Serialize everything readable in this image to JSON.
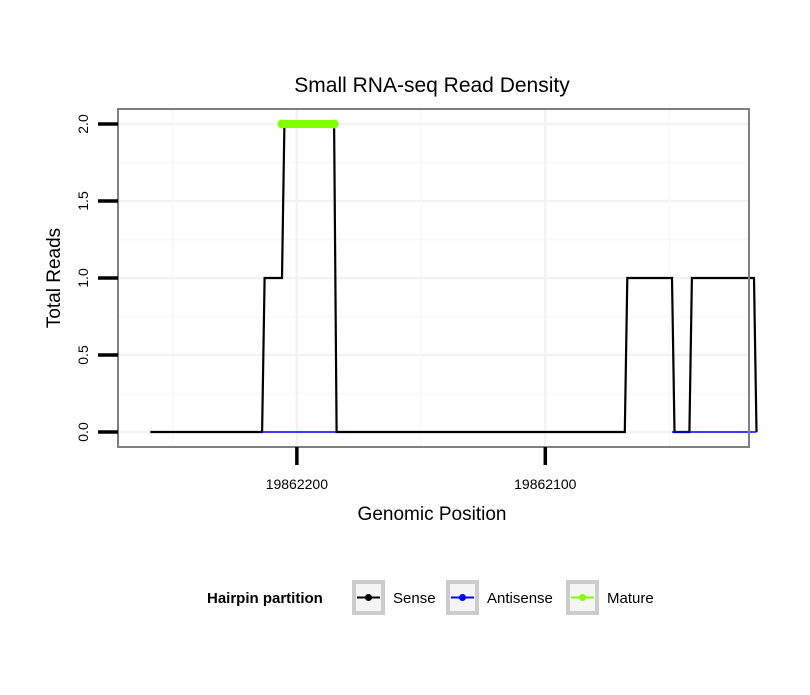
{
  "chart_data": {
    "type": "line",
    "title": "Small RNA-seq Read Density",
    "xlabel": "Genomic Position",
    "ylabel": "Total Reads",
    "ylim": [
      0,
      2.05
    ],
    "yticks": [
      {
        "value": 0.0,
        "label": "0.0"
      },
      {
        "value": 0.5,
        "label": "0.5"
      },
      {
        "value": 1.0,
        "label": "1.0"
      },
      {
        "value": 1.5,
        "label": "1.5"
      },
      {
        "value": 2.0,
        "label": "2.0"
      }
    ],
    "x_reversed": true,
    "xlim": [
      19862272,
      19862018
    ],
    "xticks": [
      {
        "value": 19862200,
        "label": "19862200"
      },
      {
        "value": 19862100,
        "label": "19862100"
      }
    ],
    "grid": true,
    "legend": {
      "title": "Hairpin partition",
      "position": "bottom",
      "items": [
        {
          "name": "Sense",
          "color": "#000000"
        },
        {
          "name": "Antisense",
          "color": "#0000ff"
        },
        {
          "name": "Mature",
          "color": "#7fff00"
        }
      ]
    },
    "series": [
      {
        "name": "Sense",
        "color": "#000000",
        "x": [
          19862259,
          19862214,
          19862213,
          19862206,
          19862205,
          19862185,
          19862184,
          19862068,
          19862067,
          19862049,
          19862048,
          19862042,
          19862041,
          19862016,
          19862015
        ],
        "y": [
          0,
          0,
          1,
          1,
          2,
          2,
          0,
          0,
          1,
          1,
          0,
          0,
          1,
          1,
          0
        ]
      },
      {
        "name": "Antisense",
        "color": "#0000ff",
        "x": [
          19862214,
          19862184,
          19862068,
          19862049,
          19862042,
          19862015
        ],
        "y": [
          0,
          0,
          null,
          0,
          0,
          0
        ]
      },
      {
        "name": "Mature",
        "color": "#7fff00",
        "x": [
          19862206,
          19862185
        ],
        "y": [
          2,
          2
        ]
      }
    ]
  }
}
